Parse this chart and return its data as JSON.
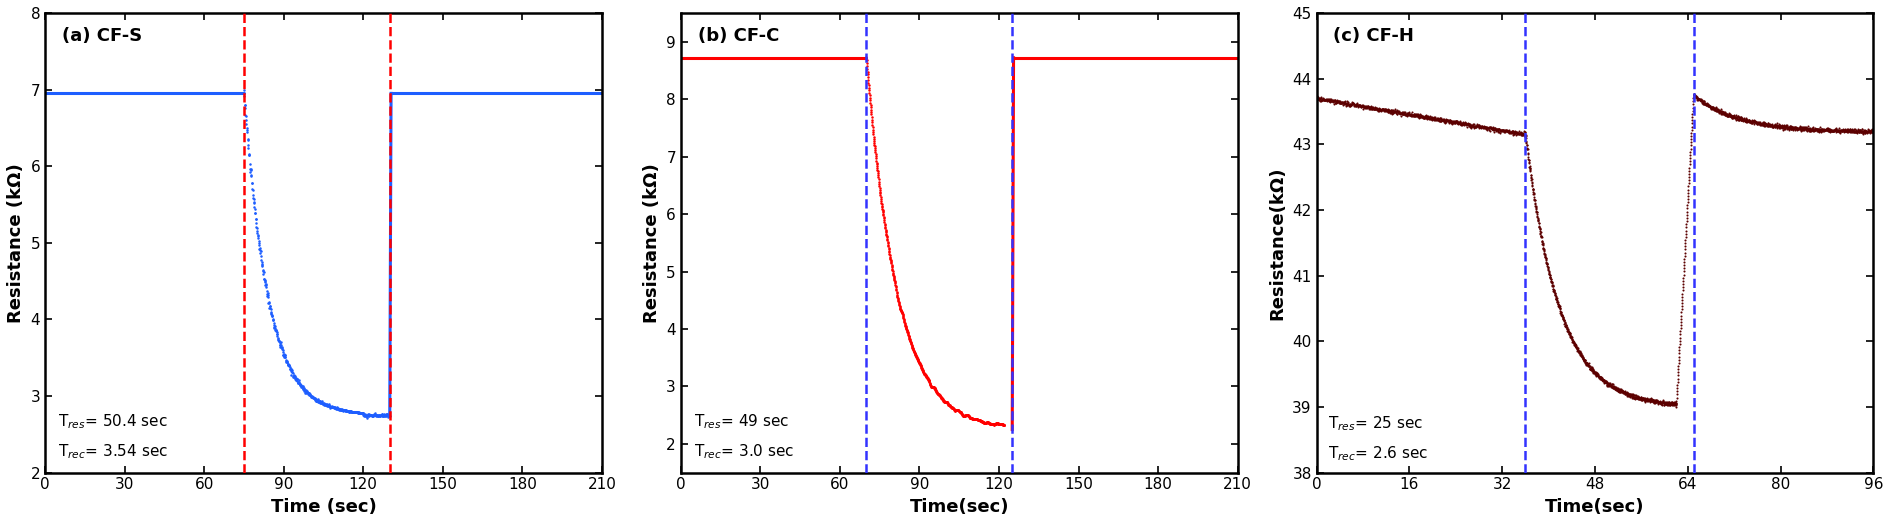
{
  "panels": [
    {
      "label": "(a) CF-S",
      "dashed_color": "#FF0000",
      "xlim": [
        0,
        210
      ],
      "ylim": [
        2,
        8
      ],
      "xticks": [
        0,
        30,
        60,
        90,
        120,
        150,
        180,
        210
      ],
      "yticks": [
        2,
        3,
        4,
        5,
        6,
        7,
        8
      ],
      "xlabel": "Time (sec)",
      "ylabel": "Resistance (kΩ)",
      "vline1": 75,
      "vline2": 130,
      "flat_val": 6.95,
      "min_val": 2.75,
      "drop_start": 75,
      "drop_end": 120,
      "recovery_end": 130,
      "annotation": "T$_{res}$= 50.4 sec\nT$_{rec}$= 3.54 sec",
      "ann_x": 5,
      "ann_y": 2.15,
      "data_color": "#1E5EFF"
    },
    {
      "label": "(b) CF-C",
      "dashed_color": "#3333FF",
      "xlim": [
        0,
        210
      ],
      "ylim": [
        1.5,
        9.5
      ],
      "xticks": [
        0,
        30,
        60,
        90,
        120,
        150,
        180,
        210
      ],
      "yticks": [
        2,
        3,
        4,
        5,
        6,
        7,
        8,
        9
      ],
      "xlabel": "Time(sec)",
      "ylabel": "Resistance (kΩ)",
      "vline1": 70,
      "vline2": 125,
      "flat_val": 8.72,
      "min_val": 2.25,
      "drop_start": 70,
      "drop_end": 122,
      "recovery_end": 125,
      "annotation": "T$_{res}$= 49 sec\nT$_{rec}$= 3.0 sec",
      "ann_x": 5,
      "ann_y": 1.7,
      "data_color": "#FF0000"
    },
    {
      "label": "(c) CF-H",
      "dashed_color": "#3333FF",
      "xlim": [
        0,
        96
      ],
      "ylim": [
        38,
        45
      ],
      "xticks": [
        0,
        16,
        32,
        48,
        64,
        80,
        96
      ],
      "yticks": [
        38,
        39,
        40,
        41,
        42,
        43,
        44,
        45
      ],
      "xlabel": "Time(sec)",
      "ylabel": "Resistance(kΩ)",
      "vline1": 36,
      "vline2": 65,
      "baseline_start": 43.7,
      "baseline_end": 43.15,
      "flat_val": 43.15,
      "min_val": 39.0,
      "drop_start": 36,
      "drop_end": 62,
      "recovery_end": 65,
      "peak_after": 43.75,
      "post_end": 43.2,
      "annotation": "T$_{res}$= 25 sec\nT$_{rec}$= 2.6 sec",
      "ann_x": 2,
      "ann_y": 38.15,
      "data_color": "#5C0000"
    }
  ],
  "fig_bgcolor": "#FFFFFF",
  "linewidth_main": 2.2,
  "linewidth_dashed": 1.8,
  "fontsize_label": 13,
  "fontsize_tick": 11,
  "fontsize_ann": 11,
  "fontsize_panel_label": 13
}
